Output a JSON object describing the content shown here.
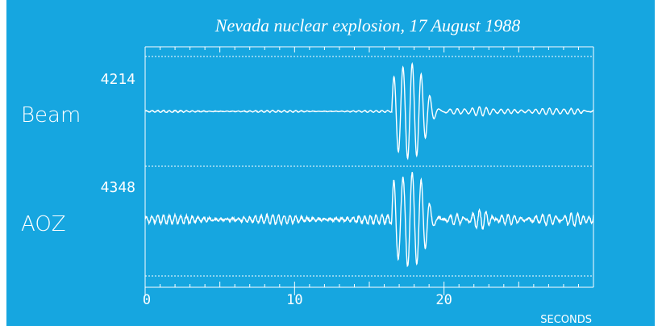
{
  "colors": {
    "background": "#16a6e0",
    "foreground": "#ffffff",
    "page": "#ffffff"
  },
  "chart_data": {
    "type": "line",
    "title": "Nevada nuclear explosion, 17 August 1988",
    "xlabel": "SECONDS",
    "xlim": [
      0,
      30
    ],
    "x_ticks": [
      0,
      10,
      20
    ],
    "x_tick_labels": [
      "0",
      "10",
      "20"
    ],
    "grid": false,
    "series": [
      {
        "name": "Beam",
        "peak_amplitude": "4214",
        "signal_onset_s": 16.5,
        "peak_time_s": 17.0
      },
      {
        "name": "AOZ",
        "peak_amplitude": "4348",
        "signal_onset_s": 16.5,
        "peak_time_s": 17.0
      }
    ]
  }
}
